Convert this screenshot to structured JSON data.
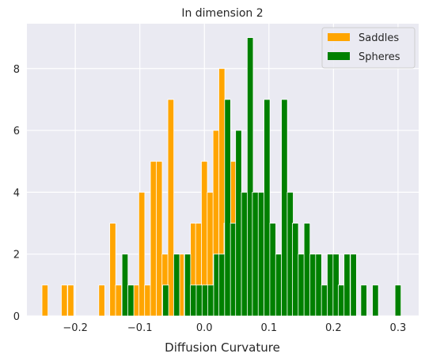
{
  "chart_data": {
    "type": "bar",
    "title": "In dimension 2",
    "xlabel": "Diffusion Curvature",
    "ylabel": "",
    "xlim": [
      -0.275,
      0.332
    ],
    "ylim": [
      0,
      9.45
    ],
    "bin_width": 0.0093,
    "xticks": [
      -0.2,
      -0.1,
      0.0,
      0.1,
      0.2,
      0.3
    ],
    "xtick_labels": [
      "−0.2",
      "−0.1",
      "0.0",
      "0.1",
      "0.2",
      "0.3"
    ],
    "yticks": [
      0,
      2,
      4,
      6,
      8
    ],
    "ytick_labels": [
      "0",
      "2",
      "4",
      "6",
      "8"
    ],
    "grid": true,
    "legend_position": "upper right",
    "series": [
      {
        "name": "Saddles",
        "color": "#ffa500",
        "bins": [
          {
            "x": -0.247,
            "y": 1
          },
          {
            "x": -0.217,
            "y": 1
          },
          {
            "x": -0.207,
            "y": 1
          },
          {
            "x": -0.159,
            "y": 1
          },
          {
            "x": -0.142,
            "y": 3
          },
          {
            "x": -0.133,
            "y": 1
          },
          {
            "x": -0.115,
            "y": 1
          },
          {
            "x": -0.105,
            "y": 1
          },
          {
            "x": -0.097,
            "y": 4
          },
          {
            "x": -0.088,
            "y": 1
          },
          {
            "x": -0.079,
            "y": 5
          },
          {
            "x": -0.07,
            "y": 5
          },
          {
            "x": -0.061,
            "y": 2
          },
          {
            "x": -0.052,
            "y": 7
          },
          {
            "x": -0.043,
            "y": 1
          },
          {
            "x": -0.035,
            "y": 2
          },
          {
            "x": -0.027,
            "y": 2
          },
          {
            "x": -0.017,
            "y": 3
          },
          {
            "x": -0.009,
            "y": 3
          },
          {
            "x": 0.0,
            "y": 5
          },
          {
            "x": 0.009,
            "y": 4
          },
          {
            "x": 0.018,
            "y": 6
          },
          {
            "x": 0.027,
            "y": 8
          },
          {
            "x": 0.035,
            "y": 3
          },
          {
            "x": 0.044,
            "y": 5
          },
          {
            "x": 0.052,
            "y": 2
          },
          {
            "x": 0.061,
            "y": 3
          },
          {
            "x": 0.148,
            "y": 2
          }
        ]
      },
      {
        "name": "Spheres",
        "color": "#008000",
        "bins": [
          {
            "x": -0.123,
            "y": 2
          },
          {
            "x": -0.114,
            "y": 1
          },
          {
            "x": -0.06,
            "y": 1
          },
          {
            "x": -0.043,
            "y": 2
          },
          {
            "x": -0.026,
            "y": 2
          },
          {
            "x": -0.017,
            "y": 1
          },
          {
            "x": -0.008,
            "y": 1
          },
          {
            "x": 0.001,
            "y": 1
          },
          {
            "x": 0.01,
            "y": 1
          },
          {
            "x": 0.019,
            "y": 2
          },
          {
            "x": 0.027,
            "y": 2
          },
          {
            "x": 0.036,
            "y": 7
          },
          {
            "x": 0.045,
            "y": 3
          },
          {
            "x": 0.053,
            "y": 6
          },
          {
            "x": 0.062,
            "y": 4
          },
          {
            "x": 0.071,
            "y": 9
          },
          {
            "x": 0.079,
            "y": 4
          },
          {
            "x": 0.088,
            "y": 4
          },
          {
            "x": 0.097,
            "y": 7
          },
          {
            "x": 0.106,
            "y": 3
          },
          {
            "x": 0.115,
            "y": 2
          },
          {
            "x": 0.124,
            "y": 7
          },
          {
            "x": 0.133,
            "y": 4
          },
          {
            "x": 0.141,
            "y": 3
          },
          {
            "x": 0.15,
            "y": 2
          },
          {
            "x": 0.159,
            "y": 3
          },
          {
            "x": 0.168,
            "y": 2
          },
          {
            "x": 0.177,
            "y": 2
          },
          {
            "x": 0.186,
            "y": 1
          },
          {
            "x": 0.195,
            "y": 2
          },
          {
            "x": 0.204,
            "y": 2
          },
          {
            "x": 0.212,
            "y": 1
          },
          {
            "x": 0.221,
            "y": 2
          },
          {
            "x": 0.231,
            "y": 2
          },
          {
            "x": 0.247,
            "y": 1
          },
          {
            "x": 0.265,
            "y": 1
          },
          {
            "x": 0.3,
            "y": 1
          }
        ]
      }
    ]
  }
}
